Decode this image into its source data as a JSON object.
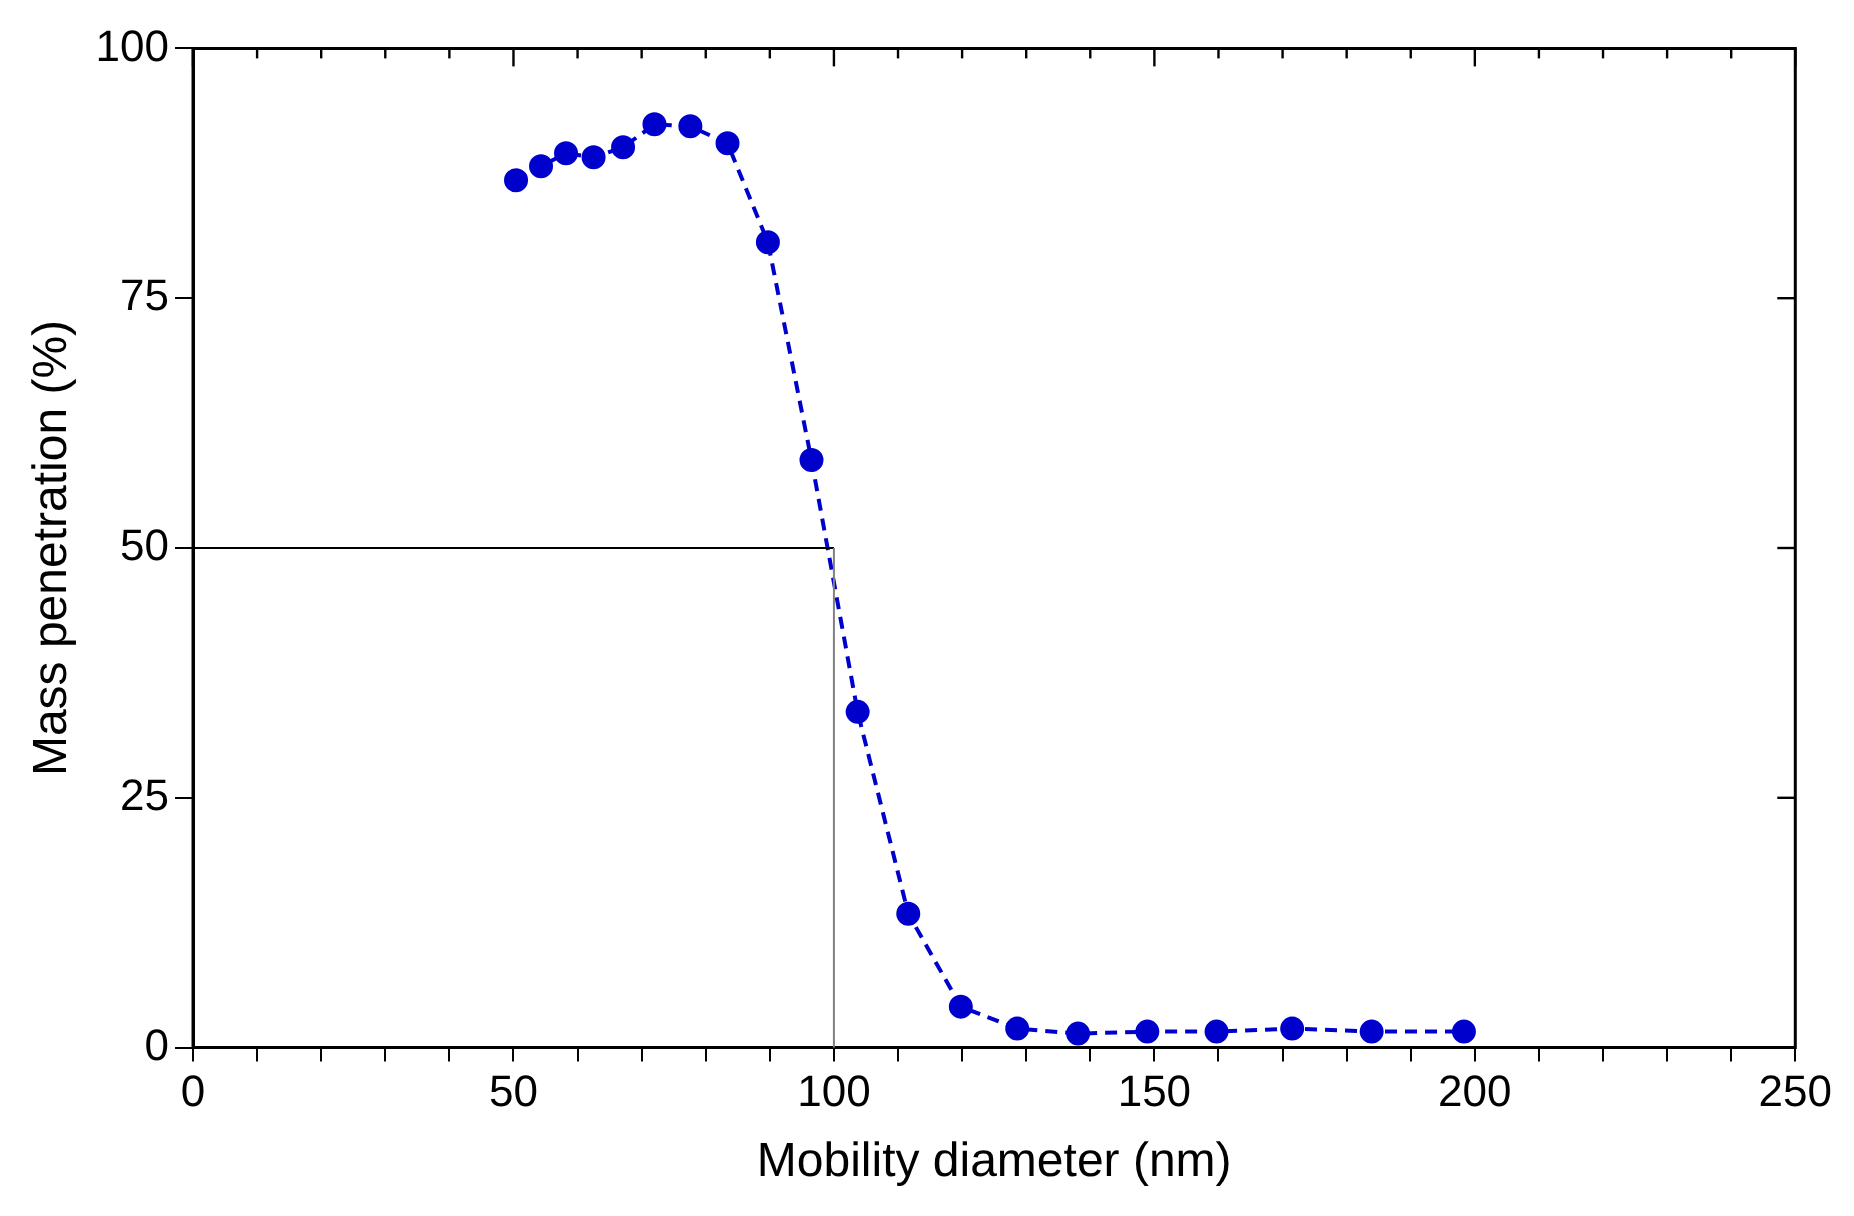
{
  "chart_data": {
    "type": "line",
    "xlabel": "Mobility diameter (nm)",
    "ylabel": "Mass penetration (%)",
    "x": [
      50.4,
      54.3,
      58.2,
      62.5,
      67.1,
      72,
      77.6,
      83.4,
      89.7,
      96.5,
      103.7,
      111.6,
      119.8,
      128.6,
      138.1,
      148.9,
      159.7,
      171.5,
      183.9,
      198.3
    ],
    "series": [
      {
        "color": "#0000cc",
        "values": [
          86.8,
          88.2,
          89.5,
          89.1,
          90.1,
          92.4,
          92.2,
          90.5,
          80.6,
          58.8,
          33.6,
          13.4,
          4.1,
          1.9,
          1.4,
          1.6,
          1.6,
          1.9,
          1.6,
          1.6
        ]
      }
    ],
    "xlim": [
      0,
      250
    ],
    "ylim": [
      0,
      100
    ],
    "xticks": [
      0,
      {
        "value": 10,
        "label": null
      },
      {
        "value": 20,
        "label": null
      },
      {
        "value": 30,
        "label": null
      },
      {
        "value": 40,
        "label": null
      },
      50,
      {
        "value": 60,
        "label": null
      },
      {
        "value": 70,
        "label": null
      },
      {
        "value": 80,
        "label": null
      },
      {
        "value": 90,
        "label": null
      },
      100,
      {
        "value": 110,
        "label": null
      },
      {
        "value": 120,
        "label": null
      },
      {
        "value": 130,
        "label": null
      },
      {
        "value": 140,
        "label": null
      },
      150,
      {
        "value": 160,
        "label": null
      },
      {
        "value": 170,
        "label": null
      },
      {
        "value": 180,
        "label": null
      },
      {
        "value": 190,
        "label": null
      },
      200,
      {
        "value": 210,
        "label": null
      },
      {
        "value": 220,
        "label": null
      },
      {
        "value": 230,
        "label": null
      },
      {
        "value": 240,
        "label": null
      },
      250
    ],
    "yticks": [
      0,
      25,
      50,
      75,
      100
    ],
    "ref_lines": [
      {
        "axis": "y",
        "value": 50,
        "color": "#000000"
      },
      {
        "axis": "x",
        "value": 100,
        "color": "#808080"
      }
    ],
    "marker": "circle",
    "line_style": "dashed",
    "grid": false,
    "legend": false
  }
}
